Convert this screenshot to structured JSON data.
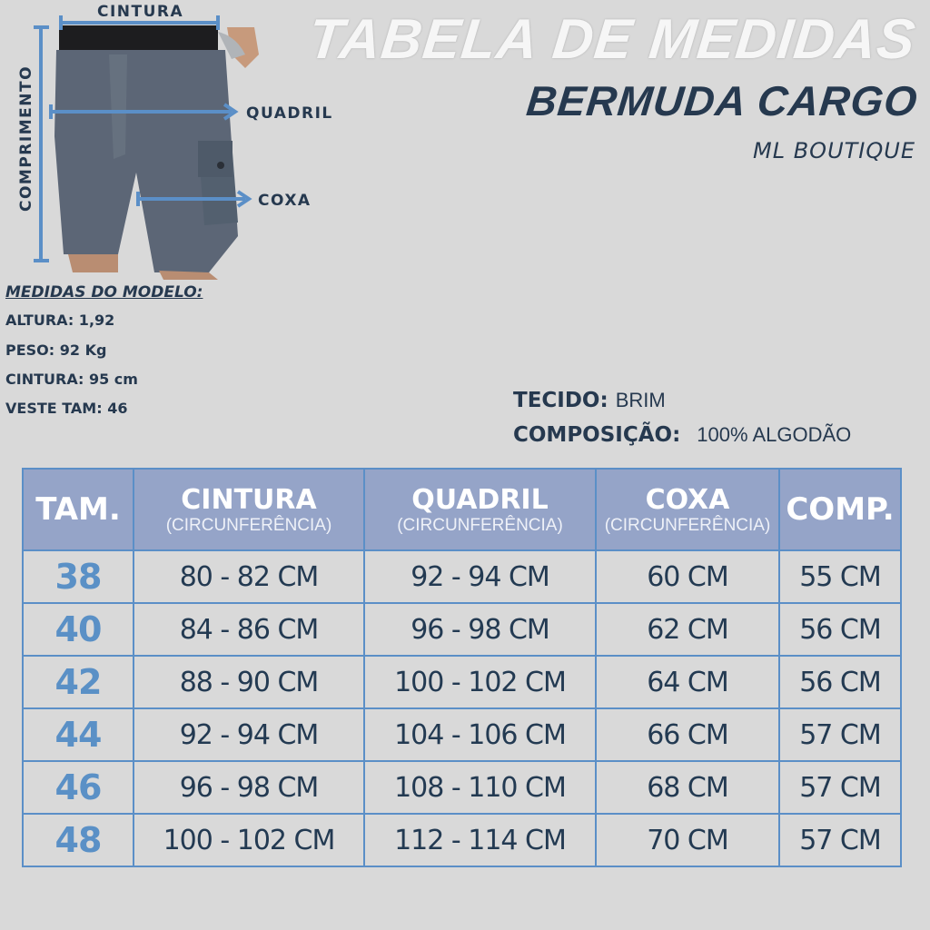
{
  "header": {
    "title": "TABELA DE MEDIDAS",
    "subtitle": "BERMUDA CARGO",
    "brand": "ML BOUTIQUE"
  },
  "diagram": {
    "labels": {
      "cintura": "CINTURA",
      "quadril": "QUADRIL",
      "coxa": "COXA",
      "comprimento": "COMPRIMENTO"
    },
    "arrow_color": "#5b8fc7"
  },
  "model": {
    "title": "MEDIDAS DO MODELO:",
    "items": [
      "ALTURA: 1,92",
      "PESO: 92 Kg",
      "CINTURA: 95 cm",
      "VESTE TAM: 46"
    ]
  },
  "fabric": {
    "tecido_label": "TECIDO:",
    "tecido": "BRIM",
    "composicao_label": "COMPOSIÇÃO:",
    "composicao": "100% ALGODÃO"
  },
  "table": {
    "headers": [
      {
        "main": "TAM.",
        "sub": ""
      },
      {
        "main": "CINTURA",
        "sub": "(CIRCUNFERÊNCIA)"
      },
      {
        "main": "QUADRIL",
        "sub": "(CIRCUNFERÊNCIA)"
      },
      {
        "main": "COXA",
        "sub": "(CIRCUNFERÊNCIA)"
      },
      {
        "main": "COMP.",
        "sub": ""
      }
    ],
    "rows": [
      [
        "38",
        "80 - 82 CM",
        "92 - 94 CM",
        "60 CM",
        "55 CM"
      ],
      [
        "40",
        "84 - 86 CM",
        "96 - 98 CM",
        "62 CM",
        "56 CM"
      ],
      [
        "42",
        "88 - 90 CM",
        "100 - 102 CM",
        "64 CM",
        "56 CM"
      ],
      [
        "44",
        "92 - 94 CM",
        "104 - 106 CM",
        "66 CM",
        "57 CM"
      ],
      [
        "46",
        "96 - 98 CM",
        "108 - 110 CM",
        "68 CM",
        "57 CM"
      ],
      [
        "48",
        "100 - 102 CM",
        "112 - 114 CM",
        "70 CM",
        "57 CM"
      ]
    ],
    "colors": {
      "header_bg": "#95a4c8",
      "border": "#5b8fc7",
      "size_text": "#5a90c6"
    }
  }
}
